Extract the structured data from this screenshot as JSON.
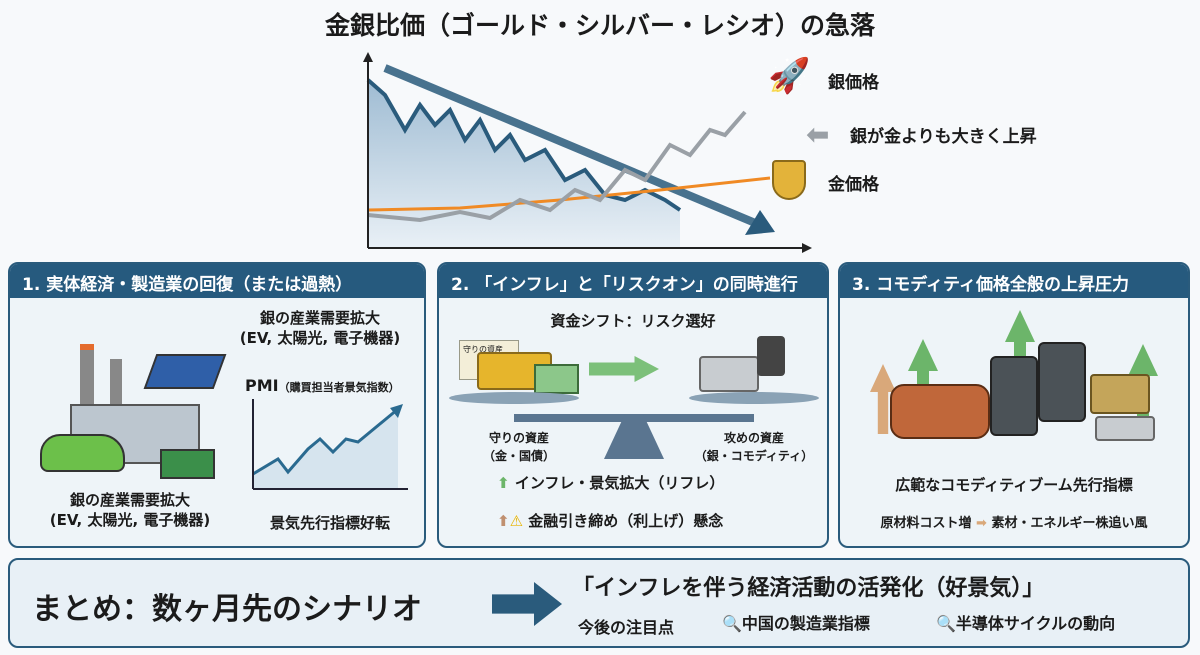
{
  "title": "金銀比価（ゴールド・シルバー・レシオ）の急落",
  "chart": {
    "silver_label": "銀価格",
    "note": "銀が金よりも大きく上昇",
    "gold_label": "金価格",
    "colors": {
      "ratio": "#2a5b7c",
      "silver": "#9aa0a6",
      "gold": "#f08a24"
    }
  },
  "panels": [
    {
      "title": "1. 実体経済・製造業の回復（または過熱）",
      "top_label": "銀の産業需要拡大",
      "top_sub": "(EV, 太陽光, 電子機器)",
      "pmi": "PMI",
      "pmi_sub": "（購買担当者景気指数）",
      "bottom_label": "銀の産業需要拡大",
      "bottom_sub": "(EV, 太陽光, 電子機器)",
      "chart_caption": "景気先行指標好転"
    },
    {
      "title": "2. 「インフレ」と「リスクオン」の同時進行",
      "subtitle": "資金シフト：リスク選好",
      "cert": "守りの資産",
      "left_label": "守りの資産",
      "left_sub": "（金・国債）",
      "right_label": "攻めの資産",
      "right_sub": "（銀・コモディティ）",
      "point1": "インフレ・景気拡大（リフレ）",
      "point2": "金融引き締め（利上げ）懸念"
    },
    {
      "title": "3. コモディティ価格全般の上昇圧力",
      "caption": "広範なコモディティブーム先行指標",
      "flow_from": "原材料コスト増",
      "flow_to": "素材・エネルギー株追い風"
    }
  ],
  "summary": {
    "label": "まとめ：数ヶ月先のシナリオ",
    "scenario": "「インフレを伴う経済活動の活発化（好景気）」",
    "watch": "今後の注目点",
    "items": [
      "中国の製造業指標",
      "半導体サイクルの動向"
    ]
  }
}
